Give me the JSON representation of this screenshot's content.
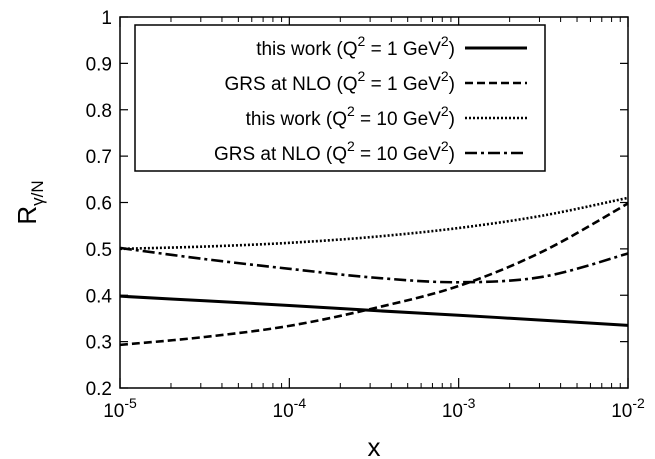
{
  "chart_data": {
    "type": "line",
    "xscale": "log",
    "xlim": [
      1e-05,
      0.01
    ],
    "ylim": [
      0.2,
      1.0
    ],
    "xlabel": "x",
    "ylabel": {
      "base": "R",
      "sub": "γ/N"
    },
    "x_ticks": [
      {
        "value": 1e-05,
        "base": "10",
        "exp": "-5"
      },
      {
        "value": 0.0001,
        "base": "10",
        "exp": "-4"
      },
      {
        "value": 0.001,
        "base": "10",
        "exp": "-3"
      },
      {
        "value": 0.01,
        "base": "10",
        "exp": "-2"
      }
    ],
    "y_ticks": [
      "0.2",
      "0.3",
      "0.4",
      "0.5",
      "0.6",
      "0.7",
      "0.8",
      "0.9",
      "1"
    ],
    "grid": false,
    "legend_position": "top-right",
    "series": [
      {
        "label_parts": [
          "this work (Q",
          "2",
          " =   1 GeV",
          "2",
          ")"
        ],
        "dash": "solid",
        "x": [
          1e-05,
          3.16e-05,
          0.0001,
          0.000316,
          0.001,
          0.00316,
          0.01
        ],
        "y": [
          0.398,
          0.388,
          0.378,
          0.367,
          0.357,
          0.346,
          0.335
        ]
      },
      {
        "label_parts": [
          "GRS at NLO (Q",
          "2",
          " =   1 GeV",
          "2",
          ")"
        ],
        "dash": "dashed",
        "x": [
          1e-05,
          3.16e-05,
          0.0001,
          0.000316,
          0.001,
          0.00316,
          0.01
        ],
        "y": [
          0.293,
          0.31,
          0.334,
          0.372,
          0.42,
          0.495,
          0.598
        ]
      },
      {
        "label_parts": [
          "this work (Q",
          "2",
          " = 10 GeV",
          "2",
          ")"
        ],
        "dash": "dotted",
        "x": [
          1e-05,
          3.16e-05,
          0.0001,
          0.000316,
          0.001,
          0.00316,
          0.01
        ],
        "y": [
          0.5,
          0.505,
          0.513,
          0.526,
          0.545,
          0.572,
          0.61
        ]
      },
      {
        "label_parts": [
          "GRS at NLO (Q",
          "2",
          " = 10 GeV",
          "2",
          ")"
        ],
        "dash": "dashdot",
        "x": [
          1e-05,
          3.16e-05,
          0.0001,
          0.000316,
          0.001,
          0.00316,
          0.01
        ],
        "y": [
          0.502,
          0.478,
          0.457,
          0.438,
          0.428,
          0.44,
          0.49
        ]
      }
    ]
  }
}
